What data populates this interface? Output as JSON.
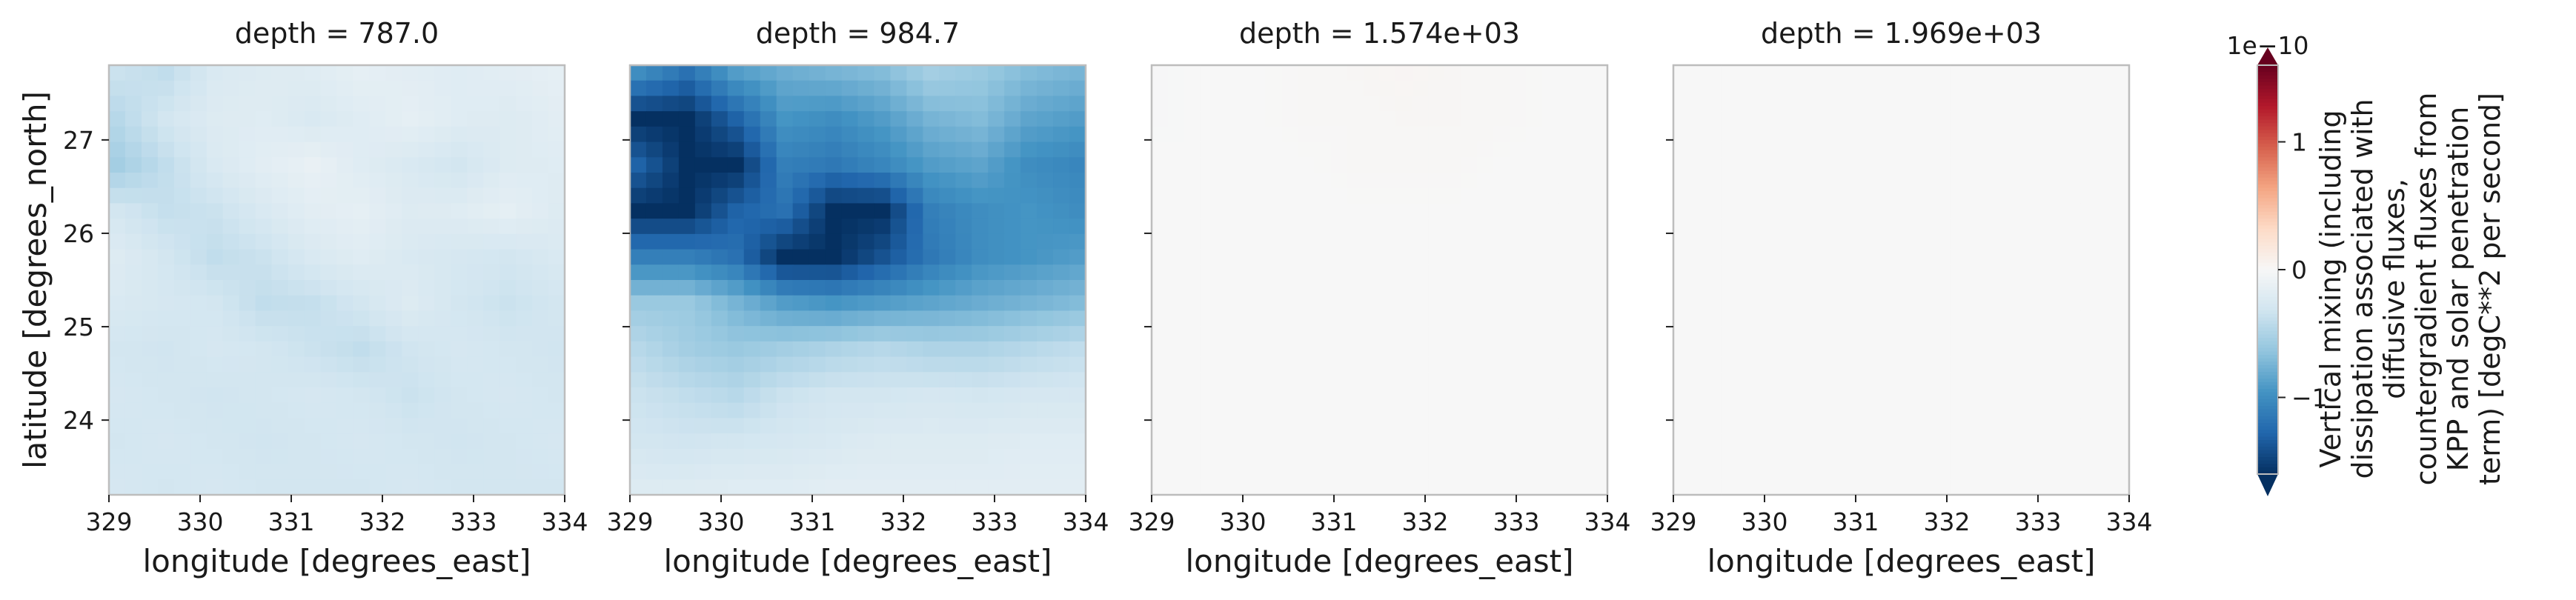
{
  "chart_data": {
    "type": "heatmap",
    "layout": "facet-row",
    "colormap": "RdBu_r",
    "colorbar": {
      "scale_label": "1e−10",
      "ticks": [
        1,
        0,
        -1
      ],
      "tick_labels": [
        "1",
        "0",
        "−1"
      ],
      "label_lines": [
        "Vertical mixing (including",
        "dissipation associated with",
        "diffusive fluxes,",
        "countergradient fluxes from",
        "KPP and solar penetration",
        "term) [degC**2 per second]"
      ],
      "vmin": -1.6,
      "vmax": 1.6,
      "extend": "both"
    },
    "xlabel": "longitude [degrees_east]",
    "ylabel": "latitude [degrees_north]",
    "xlim": [
      329,
      334
    ],
    "ylim": [
      23.2,
      27.8
    ],
    "xticks": [
      329,
      330,
      331,
      332,
      333,
      334
    ],
    "yticks": [
      24,
      25,
      26,
      27
    ],
    "panels": [
      {
        "title": "depth = 787.0",
        "grid": [
          [
            -0.35,
            -0.4,
            -0.25,
            -0.22,
            -0.2,
            -0.15,
            -0.18,
            -0.2,
            -0.18,
            -0.15
          ],
          [
            -0.45,
            -0.3,
            -0.22,
            -0.2,
            -0.25,
            -0.2,
            -0.15,
            -0.2,
            -0.22,
            -0.18
          ],
          [
            -0.55,
            -0.4,
            -0.25,
            -0.18,
            -0.12,
            -0.2,
            -0.25,
            -0.3,
            -0.22,
            -0.2
          ],
          [
            -0.3,
            -0.38,
            -0.35,
            -0.25,
            -0.18,
            -0.15,
            -0.22,
            -0.2,
            -0.15,
            -0.22
          ],
          [
            -0.22,
            -0.3,
            -0.4,
            -0.35,
            -0.25,
            -0.2,
            -0.25,
            -0.28,
            -0.3,
            -0.25
          ],
          [
            -0.25,
            -0.28,
            -0.3,
            -0.4,
            -0.38,
            -0.3,
            -0.22,
            -0.3,
            -0.35,
            -0.3
          ],
          [
            -0.3,
            -0.32,
            -0.28,
            -0.3,
            -0.35,
            -0.4,
            -0.32,
            -0.28,
            -0.3,
            -0.32
          ],
          [
            -0.28,
            -0.3,
            -0.32,
            -0.3,
            -0.28,
            -0.3,
            -0.35,
            -0.3,
            -0.28,
            -0.3
          ],
          [
            -0.3,
            -0.28,
            -0.3,
            -0.32,
            -0.3,
            -0.28,
            -0.3,
            -0.32,
            -0.3,
            -0.28
          ],
          [
            -0.28,
            -0.3,
            -0.28,
            -0.3,
            -0.3,
            -0.3,
            -0.28,
            -0.3,
            -0.3,
            -0.3
          ]
        ]
      },
      {
        "title": "depth = 984.7",
        "grid": [
          [
            -1.0,
            -1.2,
            -0.9,
            -0.8,
            -0.75,
            -0.7,
            -0.55,
            -0.6,
            -0.7,
            -0.75
          ],
          [
            -1.6,
            -1.6,
            -1.3,
            -0.95,
            -1.0,
            -0.9,
            -0.75,
            -0.7,
            -0.85,
            -0.9
          ],
          [
            -1.3,
            -1.6,
            -1.6,
            -1.1,
            -1.15,
            -1.05,
            -0.9,
            -0.85,
            -1.0,
            -1.05
          ],
          [
            -1.6,
            -1.6,
            -1.3,
            -1.2,
            -1.6,
            -1.6,
            -1.1,
            -1.0,
            -0.95,
            -1.0
          ],
          [
            -1.1,
            -1.1,
            -1.2,
            -1.6,
            -1.6,
            -1.4,
            -1.15,
            -1.0,
            -0.95,
            -0.9
          ],
          [
            -0.6,
            -0.6,
            -0.75,
            -0.9,
            -0.95,
            -0.9,
            -0.85,
            -0.8,
            -0.75,
            -0.7
          ],
          [
            -0.45,
            -0.55,
            -0.6,
            -0.55,
            -0.5,
            -0.45,
            -0.5,
            -0.5,
            -0.45,
            -0.4
          ],
          [
            -0.35,
            -0.4,
            -0.45,
            -0.35,
            -0.3,
            -0.3,
            -0.28,
            -0.3,
            -0.28,
            -0.28
          ],
          [
            -0.3,
            -0.32,
            -0.3,
            -0.28,
            -0.25,
            -0.22,
            -0.22,
            -0.22,
            -0.2,
            -0.2
          ],
          [
            -0.22,
            -0.22,
            -0.2,
            -0.2,
            -0.18,
            -0.18,
            -0.18,
            -0.18,
            -0.18,
            -0.18
          ]
        ]
      },
      {
        "title": "depth = 1.574e+03",
        "grid": [
          [
            -0.01,
            0.0,
            0.0,
            0.01,
            0.02,
            0.03,
            0.02,
            0.01,
            0.0,
            0.0
          ],
          [
            -0.01,
            0.0,
            0.0,
            0.01,
            0.01,
            0.02,
            0.02,
            0.01,
            0.0,
            0.0
          ],
          [
            0.0,
            0.0,
            0.0,
            0.0,
            0.01,
            0.01,
            0.01,
            0.0,
            0.0,
            0.0
          ],
          [
            0.0,
            0.0,
            0.0,
            0.0,
            0.0,
            0.0,
            0.0,
            0.0,
            0.0,
            0.0
          ],
          [
            0.0,
            0.0,
            0.0,
            0.0,
            0.0,
            0.0,
            0.0,
            0.0,
            0.0,
            0.0
          ],
          [
            0.0,
            0.0,
            0.0,
            0.0,
            0.0,
            0.0,
            0.0,
            0.0,
            0.0,
            0.0
          ],
          [
            0.0,
            0.0,
            0.0,
            0.0,
            0.0,
            0.0,
            0.0,
            0.0,
            0.0,
            0.0
          ],
          [
            0.0,
            0.0,
            0.0,
            0.0,
            0.0,
            0.0,
            0.0,
            0.0,
            0.0,
            0.0
          ],
          [
            0.0,
            0.0,
            0.0,
            0.0,
            0.0,
            0.0,
            0.0,
            0.0,
            0.0,
            0.0
          ],
          [
            0.0,
            0.0,
            0.0,
            0.0,
            0.0,
            0.0,
            0.0,
            0.0,
            0.0,
            0.0
          ]
        ]
      },
      {
        "title": "depth = 1.969e+03",
        "grid": [
          [
            0.0,
            0.0,
            0.0,
            0.0,
            0.0,
            0.0,
            0.0,
            0.0,
            0.0,
            0.0
          ],
          [
            0.0,
            0.0,
            0.0,
            0.0,
            0.0,
            0.0,
            0.0,
            0.0,
            0.0,
            0.0
          ],
          [
            0.0,
            0.0,
            0.0,
            0.0,
            0.0,
            0.0,
            0.0,
            0.0,
            0.0,
            0.0
          ],
          [
            0.0,
            0.0,
            0.0,
            0.0,
            0.0,
            0.0,
            0.0,
            0.0,
            0.0,
            0.0
          ],
          [
            0.0,
            0.0,
            0.0,
            0.0,
            0.0,
            0.0,
            0.0,
            0.0,
            0.0,
            0.0
          ],
          [
            0.0,
            0.0,
            0.0,
            0.0,
            0.0,
            0.0,
            0.0,
            0.0,
            0.0,
            0.0
          ],
          [
            0.0,
            0.0,
            0.0,
            0.0,
            0.0,
            0.0,
            0.0,
            0.0,
            0.0,
            0.0
          ],
          [
            0.0,
            0.0,
            0.0,
            0.0,
            0.0,
            0.0,
            0.0,
            0.0,
            0.0,
            0.0
          ],
          [
            0.0,
            0.0,
            0.0,
            0.0,
            0.0,
            0.0,
            0.0,
            0.0,
            0.0,
            0.0
          ],
          [
            0.0,
            0.0,
            0.0,
            0.0,
            0.0,
            0.0,
            0.0,
            0.0,
            0.0,
            0.0
          ]
        ]
      }
    ]
  },
  "colors": {
    "frame": "#bdbdbd",
    "text": "#1a1a1a"
  }
}
